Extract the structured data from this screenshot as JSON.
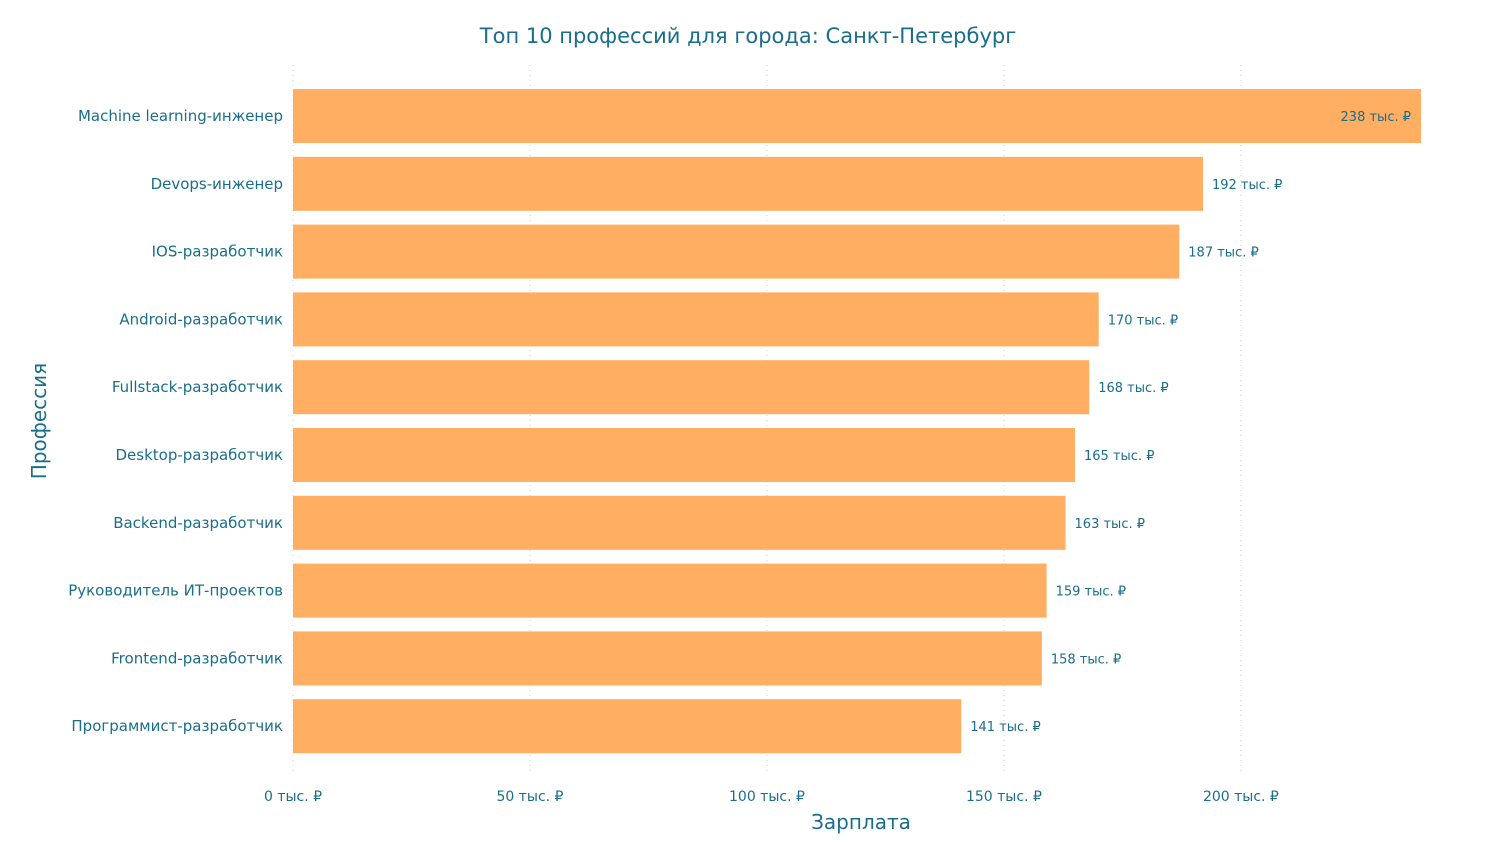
{
  "chart_data": {
    "type": "bar",
    "orientation": "horizontal",
    "title": "Топ 10 профессий для города: Санкт-Петербург",
    "xlabel": "Зарплата",
    "ylabel": "Профессия",
    "categories": [
      "Machine learning-инженер",
      "Devops-инженер",
      "IOS-разработчик",
      "Android-разработчик",
      "Fullstack-разработчик",
      "Desktop-разработчик",
      "Backend-разработчик",
      "Руководитель ИТ-проектов",
      "Frontend-разработчик",
      "Программист-разработчик"
    ],
    "values": [
      238,
      192,
      187,
      170,
      168,
      165,
      163,
      159,
      158,
      141
    ],
    "data_labels": [
      "238 тыс. ₽",
      "192 тыс. ₽",
      "187 тыс. ₽",
      "170 тыс. ₽",
      "168 тыс. ₽",
      "165 тыс. ₽",
      "163 тыс. ₽",
      "159 тыс. ₽",
      "158 тыс. ₽",
      "141 тыс. ₽"
    ],
    "x_ticks": [
      0,
      50,
      100,
      150,
      200
    ],
    "x_tick_labels": [
      "0 тыс. ₽",
      "50 тыс. ₽",
      "100 тыс. ₽",
      "150 тыс. ₽",
      "200 тыс. ₽"
    ],
    "xlim": [
      0,
      238
    ],
    "grid": "vertical dotted",
    "legend": "none",
    "colors": {
      "bar": "#ffae62",
      "text": "#1a6e8a",
      "grid": "#d0d0d0"
    }
  }
}
